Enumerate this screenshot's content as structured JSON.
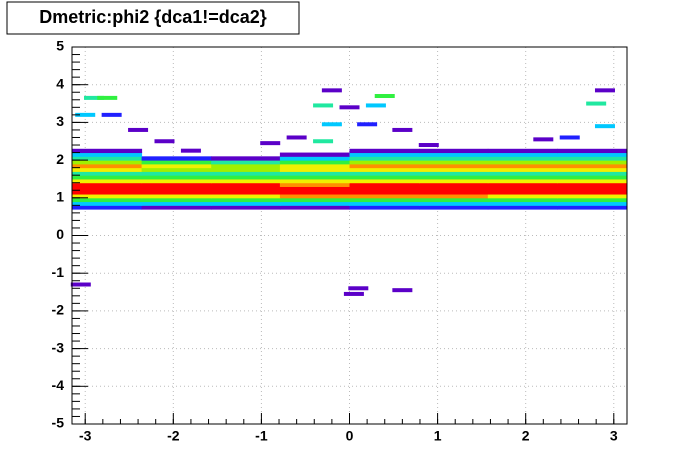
{
  "chart_data": {
    "type": "heatmap",
    "title": "Dmetric:phi2 {dca1!=dca2}",
    "xlim": [
      -3.15,
      3.15
    ],
    "ylim": [
      -5,
      5
    ],
    "xticks": [
      -3,
      -2,
      -1,
      0,
      1,
      2,
      3
    ],
    "yticks": [
      -5,
      -4,
      -3,
      -2,
      -1,
      0,
      1,
      2,
      3,
      4,
      5
    ],
    "grid": true,
    "zlim": [
      0,
      10
    ],
    "x_edges": [
      -3.15,
      -2.36,
      -1.57,
      -0.79,
      0,
      0.79,
      1.57,
      2.36,
      3.15
    ],
    "y_edges": [
      0.7,
      0.8,
      0.9,
      1.0,
      1.1,
      1.2,
      1.3,
      1.4,
      1.5,
      1.6,
      1.7,
      1.8,
      1.9,
      2.0,
      2.1,
      2.2,
      2.3
    ],
    "z": [
      [
        2,
        1,
        1,
        1,
        2,
        2,
        2,
        2
      ],
      [
        3,
        3,
        3,
        3,
        3,
        3,
        3,
        3
      ],
      [
        5,
        5,
        5,
        5,
        5,
        5,
        5,
        5
      ],
      [
        7,
        7,
        7,
        8,
        8,
        8,
        7,
        7
      ],
      [
        9,
        9,
        9,
        9,
        9,
        9,
        9,
        9
      ],
      [
        9,
        9,
        9,
        9,
        9,
        9,
        9,
        9
      ],
      [
        9,
        9,
        9,
        8,
        9,
        9,
        9,
        9
      ],
      [
        7,
        7,
        7,
        7,
        7,
        7,
        7,
        7
      ],
      [
        5,
        5,
        5,
        5,
        5,
        5,
        5,
        5
      ],
      [
        4,
        4,
        4,
        4,
        4,
        4,
        4,
        4
      ],
      [
        7,
        6,
        6,
        7,
        7,
        7,
        7,
        7
      ],
      [
        8,
        7,
        6,
        7,
        8,
        8,
        8,
        8
      ],
      [
        6,
        5,
        4,
        5,
        6,
        6,
        6,
        6
      ],
      [
        4,
        2,
        1,
        3,
        4,
        4,
        4,
        4
      ],
      [
        3,
        0,
        0,
        1,
        3,
        3,
        3,
        3
      ],
      [
        1,
        0,
        0,
        0,
        1,
        1,
        1,
        1
      ]
    ],
    "points": {
      "x": [
        -2.9,
        -2.75,
        -3.0,
        -2.7,
        -2.4,
        -2.1,
        -1.8,
        -0.3,
        -0.2,
        0.4,
        0.3,
        0.0,
        -0.2,
        0.2,
        -0.6,
        -0.9,
        0.6,
        0.9,
        -0.3,
        2.8,
        2.9,
        2.9,
        2.5,
        2.2,
        0.1,
        0.05,
        0.6,
        -3.05
      ],
      "y": [
        3.65,
        3.65,
        3.2,
        3.2,
        2.8,
        2.5,
        2.25,
        3.45,
        3.85,
        3.7,
        3.45,
        3.4,
        2.95,
        2.95,
        2.6,
        2.45,
        2.8,
        2.4,
        2.5,
        3.5,
        3.85,
        2.9,
        2.6,
        2.55,
        -1.4,
        -1.55,
        -1.45,
        -1.3
      ],
      "z": [
        4,
        5,
        3,
        2,
        1,
        1,
        1,
        4,
        1,
        5,
        3,
        1,
        3,
        2,
        1,
        1,
        1,
        1,
        4,
        4,
        1,
        3,
        2,
        1,
        1,
        1,
        1,
        1
      ]
    }
  }
}
